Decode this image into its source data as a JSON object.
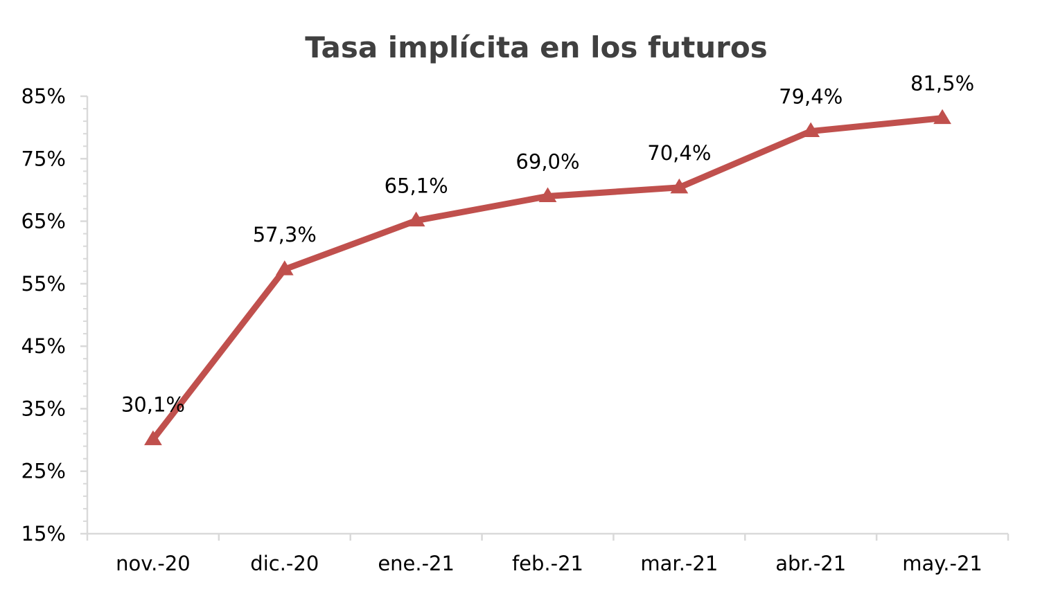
{
  "chart_data": {
    "type": "line",
    "title": "Tasa implícita en los futuros",
    "categories": [
      "nov.-20",
      "dic.-20",
      "ene.-21",
      "feb.-21",
      "mar.-21",
      "abr.-21",
      "may.-21"
    ],
    "series": [
      {
        "values": [
          30.1,
          57.3,
          65.1,
          69.0,
          70.4,
          79.4,
          81.5
        ],
        "data_labels": [
          "30,1%",
          "57,3%",
          "65,1%",
          "69,0%",
          "70,4%",
          "79,4%",
          "81,5%"
        ],
        "color": "#c0504d",
        "marker": "triangle"
      }
    ],
    "yticks": [
      15,
      25,
      35,
      45,
      55,
      65,
      75,
      85
    ],
    "ytick_labels": [
      "15%",
      "25%",
      "35%",
      "45%",
      "55%",
      "65%",
      "75%",
      "85%"
    ],
    "ylim": [
      15,
      85
    ],
    "y_unit": "%",
    "grid": false,
    "legend": "none"
  },
  "colors": {
    "axis": "#d9d9d9",
    "title": "#404040",
    "text": "#000000",
    "series": "#c0504d"
  }
}
